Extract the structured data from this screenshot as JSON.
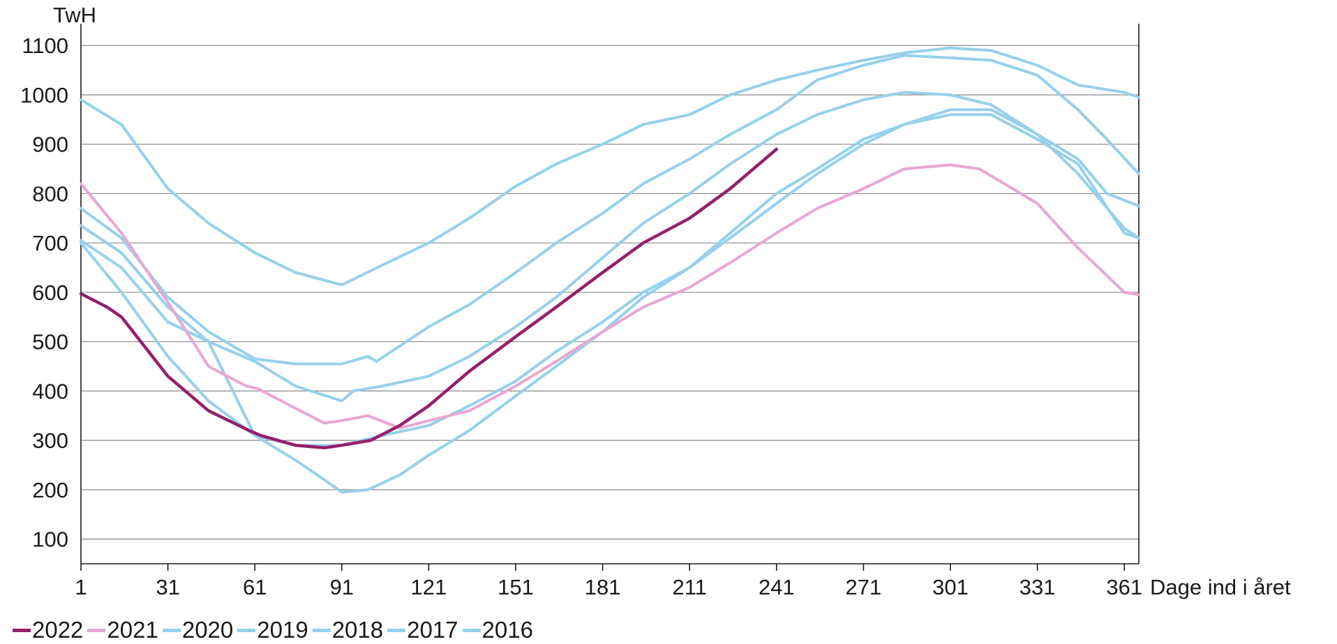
{
  "chart_data": {
    "type": "line",
    "ylabel": "TwH",
    "xlabel": "Dage ind i året",
    "xlim": [
      1,
      366
    ],
    "ylim": [
      50,
      1130
    ],
    "xticks": [
      1,
      31,
      61,
      91,
      121,
      151,
      181,
      211,
      241,
      271,
      301,
      331,
      361
    ],
    "yticks": [
      100,
      200,
      300,
      400,
      500,
      600,
      700,
      800,
      900,
      1000,
      1100
    ],
    "grid": "horizontal",
    "legend_position": "bottom-left",
    "colors": {
      "2022": "#94206b",
      "2021": "#e8a7d2",
      "other": "#96d0ec"
    },
    "series": [
      {
        "name": "2016",
        "color": "#96d0ec",
        "points": [
          [
            1,
            990
          ],
          [
            15,
            940
          ],
          [
            31,
            810
          ],
          [
            45,
            740
          ],
          [
            61,
            680
          ],
          [
            75,
            640
          ],
          [
            91,
            615
          ],
          [
            105,
            655
          ],
          [
            121,
            700
          ],
          [
            135,
            750
          ],
          [
            151,
            815
          ],
          [
            165,
            860
          ],
          [
            181,
            900
          ],
          [
            195,
            940
          ],
          [
            211,
            960
          ],
          [
            225,
            1000
          ],
          [
            241,
            1030
          ],
          [
            255,
            1050
          ],
          [
            271,
            1070
          ],
          [
            285,
            1085
          ],
          [
            301,
            1095
          ],
          [
            315,
            1090
          ],
          [
            331,
            1060
          ],
          [
            345,
            1020
          ],
          [
            361,
            1005
          ],
          [
            366,
            995
          ]
        ]
      },
      {
        "name": "2017",
        "color": "#96d0ec",
        "points": [
          [
            1,
            770
          ],
          [
            15,
            710
          ],
          [
            31,
            590
          ],
          [
            45,
            520
          ],
          [
            61,
            465
          ],
          [
            75,
            455
          ],
          [
            91,
            455
          ],
          [
            100,
            470
          ],
          [
            103,
            460
          ],
          [
            121,
            530
          ],
          [
            135,
            575
          ],
          [
            151,
            640
          ],
          [
            165,
            700
          ],
          [
            181,
            760
          ],
          [
            195,
            820
          ],
          [
            211,
            870
          ],
          [
            225,
            920
          ],
          [
            241,
            970
          ],
          [
            255,
            1030
          ],
          [
            271,
            1060
          ],
          [
            285,
            1080
          ],
          [
            301,
            1075
          ],
          [
            315,
            1070
          ],
          [
            331,
            1040
          ],
          [
            345,
            970
          ],
          [
            355,
            910
          ],
          [
            366,
            840
          ]
        ]
      },
      {
        "name": "2018",
        "color": "#96d0ec",
        "points": [
          [
            1,
            705
          ],
          [
            15,
            650
          ],
          [
            31,
            540
          ],
          [
            45,
            500
          ],
          [
            61,
            460
          ],
          [
            75,
            410
          ],
          [
            91,
            380
          ],
          [
            95,
            400
          ],
          [
            105,
            410
          ],
          [
            121,
            430
          ],
          [
            135,
            470
          ],
          [
            151,
            530
          ],
          [
            165,
            590
          ],
          [
            181,
            670
          ],
          [
            195,
            740
          ],
          [
            211,
            800
          ],
          [
            225,
            860
          ],
          [
            241,
            920
          ],
          [
            255,
            960
          ],
          [
            271,
            990
          ],
          [
            285,
            1005
          ],
          [
            301,
            1000
          ],
          [
            315,
            980
          ],
          [
            331,
            920
          ],
          [
            345,
            870
          ],
          [
            355,
            800
          ],
          [
            366,
            775
          ]
        ]
      },
      {
        "name": "2019",
        "color": "#96d0ec",
        "points": [
          [
            1,
            735
          ],
          [
            15,
            680
          ],
          [
            31,
            570
          ],
          [
            45,
            500
          ],
          [
            61,
            310
          ],
          [
            75,
            290
          ],
          [
            91,
            290
          ],
          [
            105,
            310
          ],
          [
            121,
            330
          ],
          [
            135,
            370
          ],
          [
            151,
            420
          ],
          [
            165,
            480
          ],
          [
            181,
            540
          ],
          [
            195,
            600
          ],
          [
            211,
            650
          ],
          [
            225,
            710
          ],
          [
            241,
            780
          ],
          [
            255,
            840
          ],
          [
            271,
            900
          ],
          [
            285,
            940
          ],
          [
            301,
            960
          ],
          [
            315,
            960
          ],
          [
            331,
            910
          ],
          [
            345,
            860
          ],
          [
            361,
            720
          ],
          [
            366,
            710
          ]
        ]
      },
      {
        "name": "2020",
        "color": "#96d0ec",
        "points": [
          [
            1,
            700
          ],
          [
            15,
            600
          ],
          [
            31,
            470
          ],
          [
            45,
            380
          ],
          [
            61,
            310
          ],
          [
            75,
            260
          ],
          [
            85,
            220
          ],
          [
            91,
            195
          ],
          [
            100,
            200
          ],
          [
            111,
            230
          ],
          [
            121,
            270
          ],
          [
            135,
            320
          ],
          [
            151,
            390
          ],
          [
            165,
            450
          ],
          [
            181,
            520
          ],
          [
            195,
            590
          ],
          [
            211,
            650
          ],
          [
            225,
            720
          ],
          [
            241,
            800
          ],
          [
            255,
            850
          ],
          [
            271,
            910
          ],
          [
            285,
            940
          ],
          [
            301,
            970
          ],
          [
            315,
            970
          ],
          [
            331,
            920
          ],
          [
            345,
            840
          ],
          [
            361,
            730
          ],
          [
            366,
            710
          ]
        ]
      },
      {
        "name": "2021",
        "color": "#e8a7d2",
        "points": [
          [
            1,
            820
          ],
          [
            15,
            720
          ],
          [
            31,
            580
          ],
          [
            45,
            450
          ],
          [
            58,
            410
          ],
          [
            62,
            405
          ],
          [
            75,
            365
          ],
          [
            85,
            335
          ],
          [
            91,
            340
          ],
          [
            100,
            350
          ],
          [
            111,
            325
          ],
          [
            121,
            340
          ],
          [
            135,
            360
          ],
          [
            151,
            410
          ],
          [
            165,
            460
          ],
          [
            181,
            520
          ],
          [
            195,
            570
          ],
          [
            211,
            610
          ],
          [
            225,
            660
          ],
          [
            241,
            720
          ],
          [
            255,
            770
          ],
          [
            271,
            810
          ],
          [
            285,
            850
          ],
          [
            301,
            858
          ],
          [
            311,
            850
          ],
          [
            331,
            780
          ],
          [
            345,
            690
          ],
          [
            361,
            600
          ],
          [
            366,
            595
          ]
        ]
      },
      {
        "name": "2022",
        "color": "#94206b",
        "points": [
          [
            1,
            597
          ],
          [
            10,
            570
          ],
          [
            15,
            550
          ],
          [
            31,
            430
          ],
          [
            45,
            360
          ],
          [
            59,
            320
          ],
          [
            63,
            310
          ],
          [
            75,
            290
          ],
          [
            85,
            285
          ],
          [
            91,
            290
          ],
          [
            101,
            300
          ],
          [
            111,
            330
          ],
          [
            121,
            370
          ],
          [
            135,
            440
          ],
          [
            151,
            510
          ],
          [
            165,
            570
          ],
          [
            181,
            640
          ],
          [
            195,
            700
          ],
          [
            211,
            750
          ],
          [
            225,
            810
          ],
          [
            241,
            890
          ]
        ]
      }
    ]
  }
}
